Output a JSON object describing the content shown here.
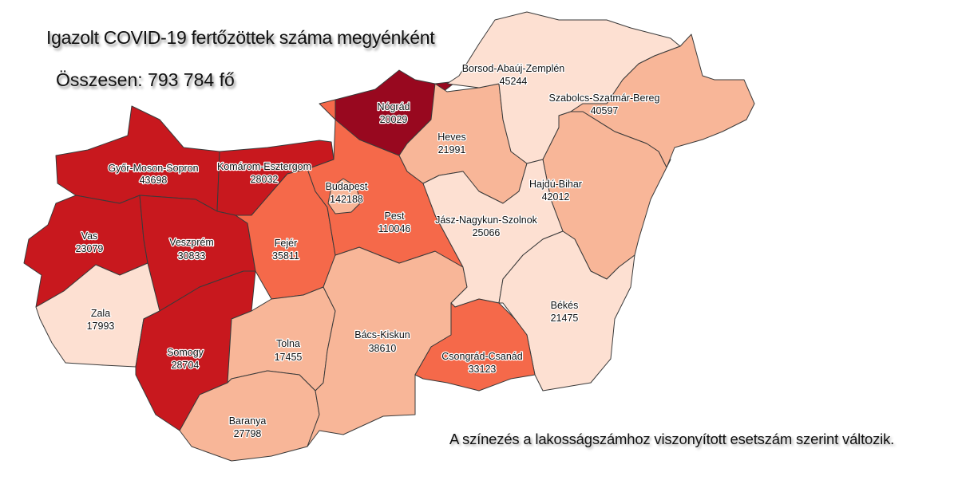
{
  "title": "Igazolt COVID-19 fertőzöttek száma megyénként",
  "total": "Összesen: 793 784 fő",
  "note": "A színezés a lakosságszámhoz viszonyított esetszám szerint változik.",
  "colors": {
    "highest": "#98081f",
    "high": "#c8181e",
    "medium": "#f5694a",
    "low": "#f8b698",
    "lowest": "#fde0d2"
  },
  "counties": [
    {
      "name": "Győr-Moson-Sopron",
      "cases": "43698",
      "level": "high"
    },
    {
      "name": "Komárom-Esztergom",
      "cases": "28032",
      "level": "high"
    },
    {
      "name": "Vas",
      "cases": "23079",
      "level": "high"
    },
    {
      "name": "Veszprém",
      "cases": "30833",
      "level": "high"
    },
    {
      "name": "Zala",
      "cases": "17993",
      "level": "lowest"
    },
    {
      "name": "Somogy",
      "cases": "28704",
      "level": "high"
    },
    {
      "name": "Fejér",
      "cases": "35811",
      "level": "medium"
    },
    {
      "name": "Tolna",
      "cases": "17455",
      "level": "low"
    },
    {
      "name": "Baranya",
      "cases": "27798",
      "level": "low"
    },
    {
      "name": "Bács-Kiskun",
      "cases": "38610",
      "level": "low"
    },
    {
      "name": "Pest",
      "cases": "110046",
      "level": "medium"
    },
    {
      "name": "Budapest",
      "cases": "142188",
      "level": "low"
    },
    {
      "name": "Nógrád",
      "cases": "20029",
      "level": "highest"
    },
    {
      "name": "Heves",
      "cases": "21991",
      "level": "low"
    },
    {
      "name": "Borsod-Abaúj-Zemplén",
      "cases": "45244",
      "level": "lowest"
    },
    {
      "name": "Szabolcs-Szatmár-Bereg",
      "cases": "40597",
      "level": "low"
    },
    {
      "name": "Hajdú-Bihar",
      "cases": "42012",
      "level": "low"
    },
    {
      "name": "Jász-Nagykun-Szolnok",
      "cases": "25066",
      "level": "lowest"
    },
    {
      "name": "Békés",
      "cases": "21475",
      "level": "lowest"
    },
    {
      "name": "Csongrád-Csanád",
      "cases": "33123",
      "level": "medium"
    }
  ]
}
